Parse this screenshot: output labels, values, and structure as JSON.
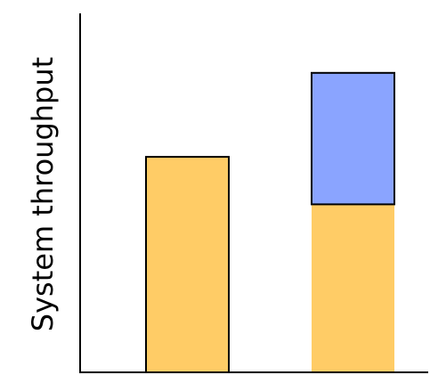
{
  "chart_data": {
    "type": "bar",
    "stacked": true,
    "title": "",
    "xlabel": "",
    "ylabel": "System throughput",
    "categories": [
      "",
      ""
    ],
    "ylim": [
      0,
      100
    ],
    "series": [
      {
        "values": [
          59,
          46
        ],
        "color": "#FFCC66"
      },
      {
        "values": [
          0,
          36
        ],
        "color": "#8AA4FF"
      }
    ],
    "axes": {
      "x_ticks": false,
      "y_ticks": false,
      "grid": false
    }
  }
}
